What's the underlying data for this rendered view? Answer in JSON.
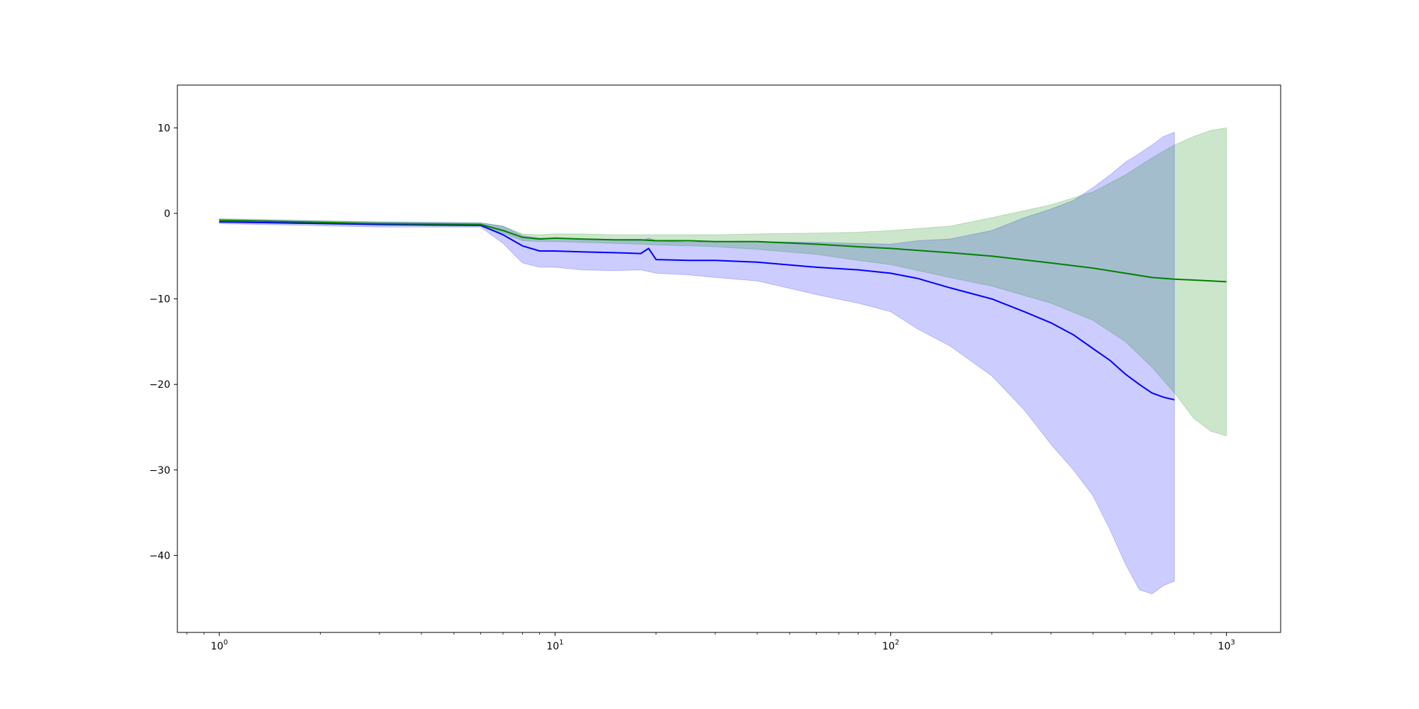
{
  "chart_data": {
    "type": "line",
    "title": "",
    "xlabel": "",
    "ylabel": "",
    "x_scale": "log",
    "xlim": [
      0.75,
      1450
    ],
    "ylim": [
      -49,
      15
    ],
    "grid": false,
    "legend": "none",
    "x_ticks": [
      {
        "value": 1,
        "base": "10",
        "exp": "0"
      },
      {
        "value": 10,
        "base": "10",
        "exp": "1"
      },
      {
        "value": 100,
        "base": "10",
        "exp": "2"
      },
      {
        "value": 1000,
        "base": "10",
        "exp": "3"
      }
    ],
    "y_ticks": [
      {
        "value": 10,
        "label": "10"
      },
      {
        "value": 0,
        "label": "0"
      },
      {
        "value": -10,
        "label": "−10"
      },
      {
        "value": -20,
        "label": "−20"
      },
      {
        "value": -30,
        "label": "−30"
      },
      {
        "value": -40,
        "label": "−40"
      }
    ],
    "series": [
      {
        "color": "#0000ff",
        "band_color": "#0000ff",
        "x": [
          1,
          3,
          6,
          7,
          8,
          9,
          10,
          12,
          15,
          18,
          19,
          20,
          25,
          30,
          40,
          60,
          80,
          100,
          120,
          150,
          200,
          250,
          300,
          350,
          400,
          450,
          500,
          550,
          600,
          650,
          700
        ],
        "y": [
          -1.0,
          -1.3,
          -1.4,
          -2.5,
          -3.8,
          -4.4,
          -4.4,
          -4.5,
          -4.6,
          -4.7,
          -4.1,
          -5.4,
          -5.5,
          -5.5,
          -5.7,
          -6.3,
          -6.6,
          -7.0,
          -7.6,
          -8.7,
          -10.0,
          -11.5,
          -12.8,
          -14.2,
          -15.8,
          -17.2,
          -18.8,
          -20.0,
          -21.0,
          -21.5,
          -21.8
        ],
        "lower": [
          -1.2,
          -1.6,
          -1.6,
          -3.5,
          -5.8,
          -6.3,
          -6.3,
          -6.6,
          -6.7,
          -6.6,
          -6.8,
          -7.0,
          -7.2,
          -7.5,
          -7.9,
          -9.5,
          -10.5,
          -11.5,
          -13.5,
          -15.5,
          -19.0,
          -23.0,
          -27.0,
          -30.0,
          -33.0,
          -37.0,
          -41.0,
          -44.0,
          -44.5,
          -43.5,
          -43.0
        ],
        "upper": [
          -0.7,
          -1.0,
          -1.1,
          -1.5,
          -2.6,
          -2.9,
          -2.9,
          -3.0,
          -3.1,
          -3.2,
          -2.9,
          -3.2,
          -3.4,
          -3.3,
          -3.3,
          -3.4,
          -3.5,
          -3.6,
          -3.2,
          -3.0,
          -2.0,
          -0.5,
          0.5,
          1.5,
          3.0,
          4.5,
          6.0,
          7.0,
          8.0,
          9.0,
          9.5
        ]
      },
      {
        "color": "#008000",
        "band_color": "#008000",
        "x": [
          1,
          3,
          6,
          7,
          8,
          9,
          10,
          12,
          15,
          18,
          20,
          25,
          30,
          40,
          60,
          80,
          100,
          150,
          200,
          300,
          400,
          500,
          600,
          700,
          800,
          900,
          1000
        ],
        "y": [
          -0.8,
          -1.2,
          -1.3,
          -2.0,
          -2.8,
          -3.0,
          -2.9,
          -3.0,
          -3.1,
          -3.1,
          -3.2,
          -3.2,
          -3.3,
          -3.3,
          -3.6,
          -3.9,
          -4.1,
          -4.6,
          -5.0,
          -5.8,
          -6.4,
          -7.0,
          -7.5,
          -7.7,
          -7.8,
          -7.9,
          -8.0
        ],
        "lower": [
          -1.0,
          -1.4,
          -1.5,
          -2.3,
          -3.2,
          -3.3,
          -3.3,
          -3.4,
          -3.5,
          -3.6,
          -3.7,
          -3.8,
          -3.9,
          -4.2,
          -4.8,
          -5.5,
          -6.0,
          -7.5,
          -8.5,
          -10.5,
          -12.5,
          -15.0,
          -18.0,
          -21.0,
          -24.0,
          -25.5,
          -26.0
        ],
        "upper": [
          -0.6,
          -1.0,
          -1.1,
          -1.5,
          -2.4,
          -2.5,
          -2.4,
          -2.4,
          -2.5,
          -2.5,
          -2.5,
          -2.5,
          -2.5,
          -2.4,
          -2.3,
          -2.2,
          -2.0,
          -1.5,
          -0.5,
          1.0,
          2.5,
          4.5,
          6.5,
          8.0,
          9.0,
          9.7,
          10.0
        ]
      }
    ]
  }
}
